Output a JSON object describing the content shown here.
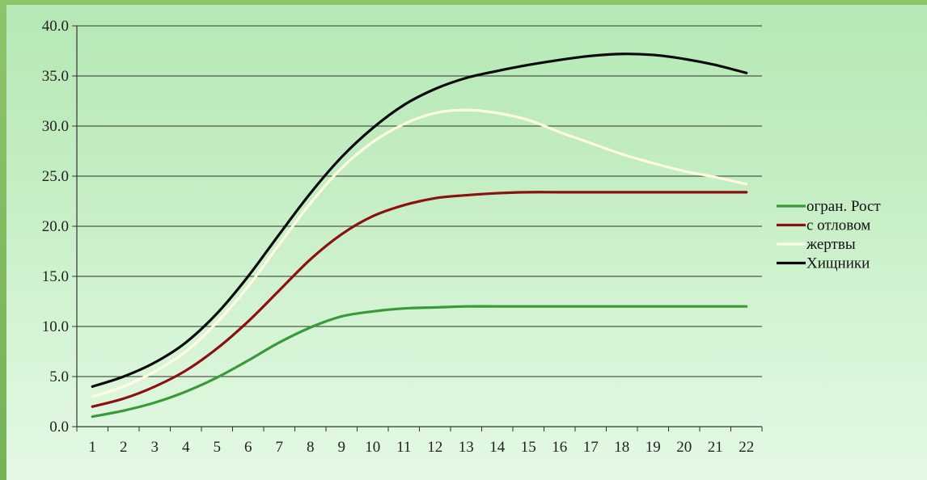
{
  "chart_data": {
    "type": "line",
    "title": "",
    "xlabel": "",
    "ylabel": "",
    "x": [
      1,
      2,
      3,
      4,
      5,
      6,
      7,
      8,
      9,
      10,
      11,
      12,
      13,
      14,
      15,
      16,
      17,
      18,
      19,
      20,
      21,
      22
    ],
    "x_tick_labels": [
      "1",
      "2",
      "3",
      "4",
      "5",
      "6",
      "7",
      "8",
      "9",
      "10",
      "11",
      "12",
      "13",
      "14",
      "15",
      "16",
      "17",
      "18",
      "19",
      "20",
      "21",
      "22"
    ],
    "ylim": [
      0,
      40
    ],
    "y_ticks": [
      0,
      5,
      10,
      15,
      20,
      25,
      30,
      35,
      40
    ],
    "y_tick_labels": [
      "0.0",
      "5.0",
      "10.0",
      "15.0",
      "20.0",
      "25.0",
      "30.0",
      "35.0",
      "40.0"
    ],
    "grid": "horizontal",
    "legend_position": "right",
    "series": [
      {
        "name": "огран. Рост",
        "color": "#3a9a3a",
        "values": [
          1.0,
          1.6,
          2.4,
          3.5,
          4.9,
          6.6,
          8.4,
          9.9,
          11.0,
          11.5,
          11.8,
          11.9,
          12.0,
          12.0,
          12.0,
          12.0,
          12.0,
          12.0,
          12.0,
          12.0,
          12.0,
          12.0
        ]
      },
      {
        "name": "с отловом",
        "color": "#8b1010",
        "values": [
          2.0,
          2.8,
          4.0,
          5.6,
          7.8,
          10.5,
          13.6,
          16.7,
          19.2,
          21.0,
          22.1,
          22.8,
          23.1,
          23.3,
          23.4,
          23.4,
          23.4,
          23.4,
          23.4,
          23.4,
          23.4,
          23.4
        ]
      },
      {
        "name": "жертвы",
        "color": "#fffde0",
        "values": [
          3.0,
          4.0,
          5.5,
          7.5,
          10.4,
          14.0,
          18.2,
          22.3,
          25.8,
          28.4,
          30.2,
          31.3,
          31.6,
          31.3,
          30.6,
          29.4,
          28.3,
          27.2,
          26.3,
          25.5,
          24.9,
          24.2
        ]
      },
      {
        "name": "Хищники",
        "color": "#0a0a0a",
        "values": [
          4.0,
          5.0,
          6.4,
          8.4,
          11.3,
          15.0,
          19.2,
          23.3,
          26.9,
          29.8,
          32.1,
          33.7,
          34.8,
          35.5,
          36.1,
          36.6,
          37.0,
          37.2,
          37.1,
          36.7,
          36.1,
          35.3
        ]
      }
    ]
  }
}
